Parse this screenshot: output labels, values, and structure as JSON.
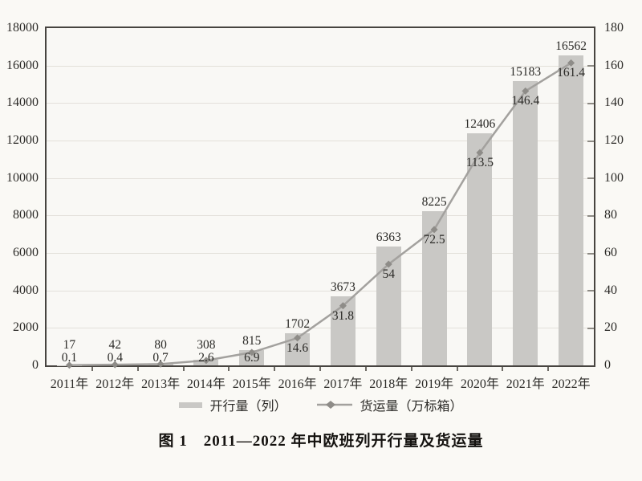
{
  "chart_data": {
    "type": "combo-bar-line",
    "title": "图 1　2011—2022 年中欧班列开行量及货运量",
    "categories": [
      "2011年",
      "2012年",
      "2013年",
      "2014年",
      "2015年",
      "2016年",
      "2017年",
      "2018年",
      "2019年",
      "2020年",
      "2021年",
      "2022年"
    ],
    "series": [
      {
        "name": "开行量（列）",
        "type": "bar",
        "axis": "left",
        "values": [
          17,
          42,
          80,
          308,
          815,
          1702,
          3673,
          6363,
          8225,
          12406,
          15183,
          16562
        ]
      },
      {
        "name": "货运量（万标箱）",
        "type": "line",
        "axis": "right",
        "values": [
          0.1,
          0.4,
          0.7,
          2.6,
          6.9,
          14.6,
          31.8,
          54,
          72.5,
          113.5,
          146.4,
          161.4
        ]
      }
    ],
    "left_axis": {
      "min": 0,
      "max": 18000,
      "step": 2000,
      "ticks": [
        0,
        2000,
        4000,
        6000,
        8000,
        10000,
        12000,
        14000,
        16000,
        18000
      ]
    },
    "right_axis": {
      "min": 0,
      "max": 180,
      "step": 20,
      "ticks": [
        0,
        20,
        40,
        60,
        80,
        100,
        120,
        140,
        160,
        180
      ]
    },
    "grid": true,
    "legend_position": "bottom",
    "colors": {
      "bar": "#c9c8c5",
      "line": "#a3a19e",
      "marker": "#8e8c88",
      "border": "#474440",
      "grid": "#e3e0da",
      "background": "#faf9f5",
      "text": "#2b2a27"
    }
  }
}
